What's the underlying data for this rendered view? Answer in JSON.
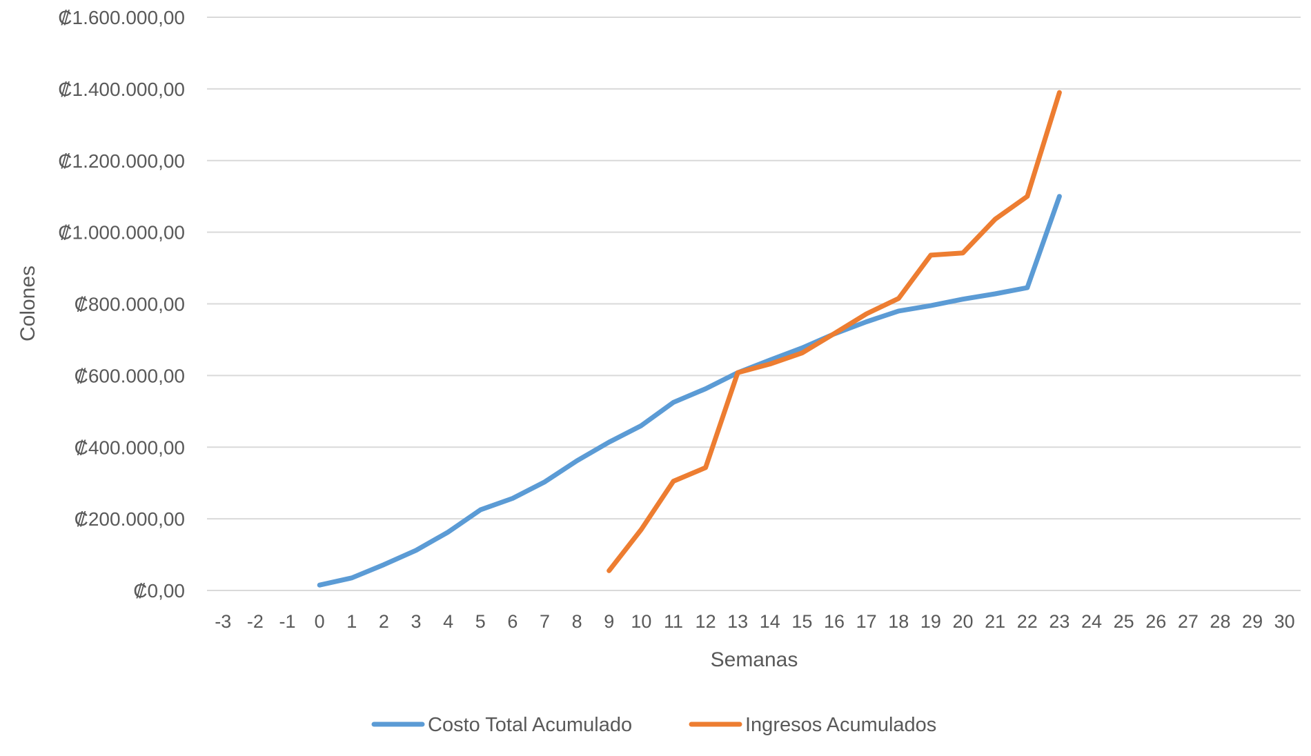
{
  "chart_data": {
    "type": "line",
    "title": "",
    "xlabel": "Semanas",
    "ylabel": "Colones",
    "x_ticks": [
      "-3",
      "-2",
      "-1",
      "0",
      "1",
      "2",
      "3",
      "4",
      "5",
      "6",
      "7",
      "8",
      "9",
      "10",
      "11",
      "12",
      "13",
      "14",
      "15",
      "16",
      "17",
      "18",
      "19",
      "20",
      "21",
      "22",
      "23",
      "24",
      "25",
      "26",
      "27",
      "28",
      "29",
      "30"
    ],
    "xlim": [
      -3,
      30
    ],
    "ylim": [
      0,
      1600000
    ],
    "y_ticks": [
      0,
      200000,
      400000,
      600000,
      800000,
      1000000,
      1200000,
      1400000,
      1600000
    ],
    "y_tick_labels": [
      "₡0,00",
      "₡200.000,00",
      "₡400.000,00",
      "₡600.000,00",
      "₡800.000,00",
      "₡1.000.000,00",
      "₡1.200.000,00",
      "₡1.400.000,00",
      "₡1.600.000,00"
    ],
    "grid": true,
    "legend_position": "bottom",
    "series": [
      {
        "name": "Costo Total Acumulado",
        "color": "#5b9bd5",
        "x": [
          0,
          1,
          2,
          3,
          4,
          5,
          6,
          7,
          8,
          9,
          10,
          11,
          12,
          13,
          14,
          15,
          16,
          17,
          18,
          19,
          20,
          21,
          22,
          23
        ],
        "values": [
          15000,
          35000,
          72000,
          112000,
          163000,
          225000,
          257000,
          303000,
          362000,
          414000,
          460000,
          525000,
          563000,
          608000,
          643000,
          677000,
          716000,
          750000,
          780000,
          795000,
          813000,
          828000,
          845000,
          1100000
        ]
      },
      {
        "name": "Ingresos Acumulados",
        "color": "#ed7d31",
        "x": [
          9,
          10,
          11,
          12,
          13,
          14,
          15,
          16,
          17,
          18,
          19,
          20,
          21,
          22,
          23
        ],
        "values": [
          55000,
          170000,
          305000,
          343000,
          608000,
          632000,
          663000,
          717000,
          772000,
          815000,
          936000,
          942000,
          1036000,
          1100000,
          1390000
        ]
      }
    ]
  }
}
